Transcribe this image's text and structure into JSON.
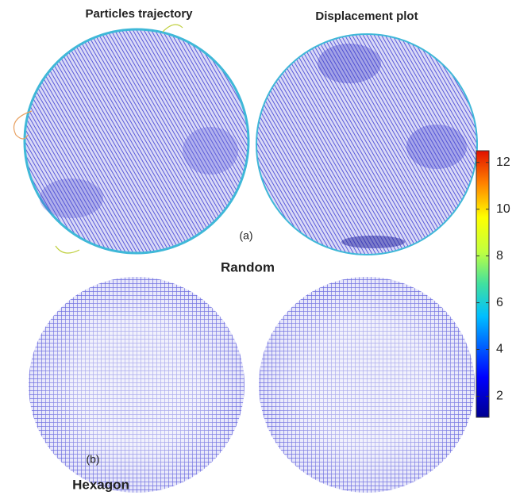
{
  "columns": [
    "Particles trajectory",
    "Displacement plot"
  ],
  "panels": [
    {
      "label": "(a)",
      "title": "Random"
    },
    {
      "label": "(b)",
      "title": "Hexagon"
    }
  ],
  "colorbar": {
    "lim": [
      1.1,
      12.5
    ],
    "ticks": [
      2,
      4,
      6,
      8,
      10,
      12
    ]
  }
}
